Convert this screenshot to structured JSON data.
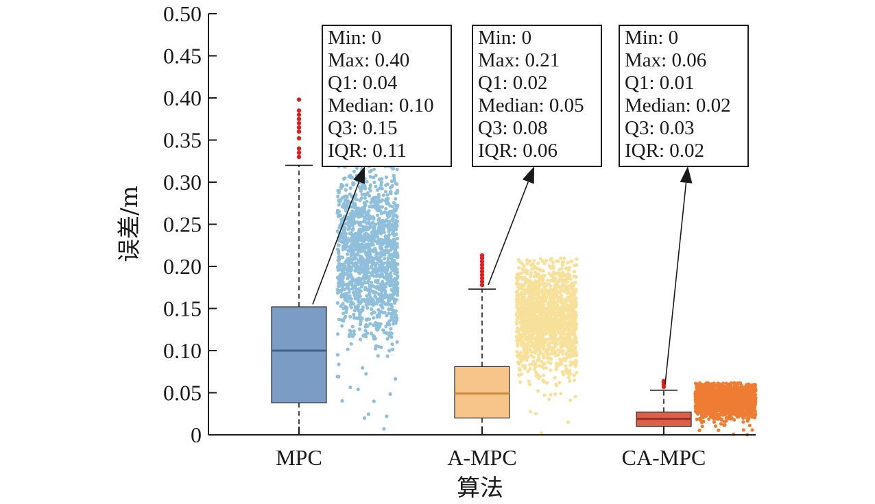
{
  "chart_data": {
    "type": "box",
    "categories": [
      "MPC",
      "A-MPC",
      "CA-MPC"
    ],
    "xlabel": "算法",
    "ylabel": "误差/m",
    "ylim": [
      0,
      0.5
    ],
    "yticks": [
      0,
      0.05,
      0.1,
      0.15,
      0.2,
      0.25,
      0.3,
      0.35,
      0.4,
      0.45,
      0.5
    ],
    "ytick_labels": [
      "0",
      "0.05",
      "0.10",
      "0.15",
      "0.20",
      "0.25",
      "0.30",
      "0.35",
      "0.40",
      "0.45",
      "0.50"
    ],
    "grid": false,
    "series": [
      {
        "category": "MPC",
        "box_color": "#7b9cc4",
        "median_color": "#3d6189",
        "points_color": "#8fbfda",
        "whisker_low": 0,
        "q1": 0.038,
        "median": 0.1,
        "q3": 0.152,
        "whisker_high": 0.32,
        "outliers": [
          0.33,
          0.335,
          0.34,
          0.352,
          0.36,
          0.365,
          0.37,
          0.375,
          0.38,
          0.385,
          0.398
        ],
        "scatter_max": 0.32,
        "stats": [
          "Min: 0",
          "Max: 0.40",
          "Q1: 0.04",
          "Median: 0.10",
          "Q3: 0.15",
          "IQR: 0.11"
        ]
      },
      {
        "category": "A-MPC",
        "box_color": "#f7c58a",
        "median_color": "#c98a3e",
        "points_color": "#f7e19a",
        "whisker_low": 0,
        "q1": 0.02,
        "median": 0.049,
        "q3": 0.081,
        "whisker_high": 0.173,
        "outliers": [
          0.178,
          0.182,
          0.186,
          0.19,
          0.194,
          0.198,
          0.202,
          0.206,
          0.21,
          0.213
        ],
        "scatter_max": 0.21,
        "stats": [
          "Min: 0",
          "Max: 0.21",
          "Q1: 0.02",
          "Median: 0.05",
          "Q3: 0.08",
          "IQR: 0.06"
        ]
      },
      {
        "category": "CA-MPC",
        "box_color": "#d9614a",
        "median_color": "#9c2f22",
        "points_color": "#ee7d33",
        "whisker_low": 0,
        "q1": 0.01,
        "median": 0.019,
        "q3": 0.027,
        "whisker_high": 0.053,
        "outliers": [
          0.057,
          0.06,
          0.062,
          0.064
        ],
        "scatter_max": 0.062,
        "stats": [
          "Min: 0",
          "Max: 0.06",
          "Q1: 0.01",
          "Median: 0.02",
          "Q3: 0.03",
          "IQR: 0.02"
        ]
      }
    ],
    "outlier_color": "#e02020"
  }
}
